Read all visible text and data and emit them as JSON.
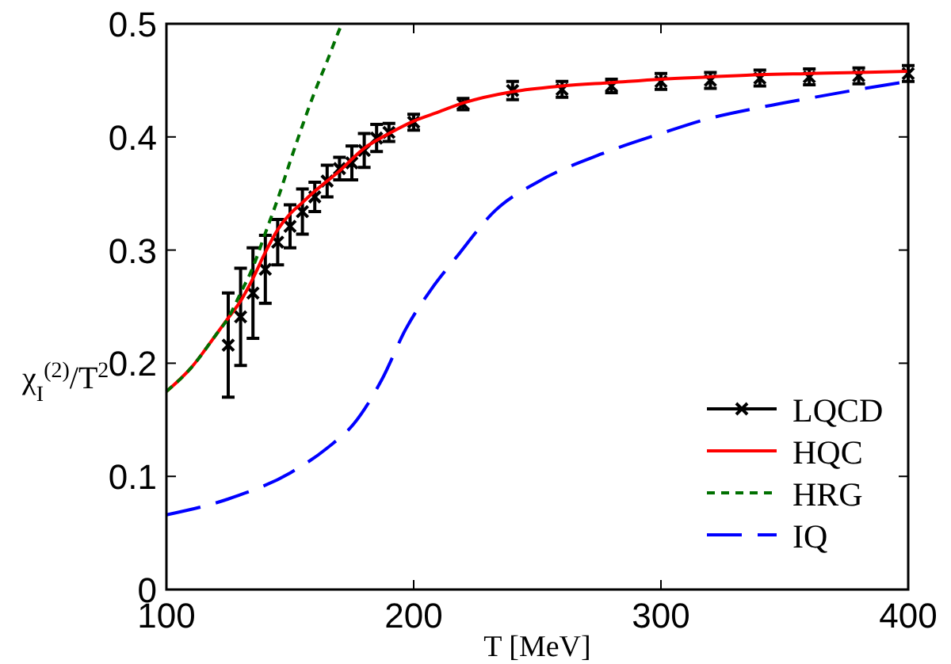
{
  "chart_data": {
    "type": "line",
    "xlabel": "T [MeV]",
    "ylabel": "χ$_{I}$$^{(2)}$/T$^{2}$",
    "xlim": [
      100,
      400
    ],
    "ylim": [
      0,
      0.5
    ],
    "xticks": [
      100,
      200,
      300,
      400
    ],
    "yticks": [
      0,
      0.1,
      0.2,
      0.3,
      0.4,
      0.5
    ],
    "grid": false,
    "legend": "bottom right",
    "series": [
      {
        "name": "LQCD",
        "type": "scatter",
        "color": "#000000",
        "marker": "cross",
        "x": [
          125,
          130,
          135,
          140,
          145,
          150,
          155,
          160,
          165,
          170,
          175,
          180,
          185,
          190,
          200,
          220,
          240,
          260,
          280,
          300,
          320,
          340,
          360,
          380,
          400
        ],
        "values": [
          0.216,
          0.241,
          0.262,
          0.283,
          0.307,
          0.321,
          0.334,
          0.347,
          0.361,
          0.372,
          0.377,
          0.388,
          0.399,
          0.404,
          0.413,
          0.429,
          0.441,
          0.442,
          0.445,
          0.449,
          0.45,
          0.452,
          0.453,
          0.454,
          0.456
        ],
        "errors": [
          0.046,
          0.043,
          0.04,
          0.03,
          0.02,
          0.019,
          0.02,
          0.013,
          0.014,
          0.01,
          0.015,
          0.015,
          0.012,
          0.008,
          0.007,
          0.005,
          0.008,
          0.007,
          0.006,
          0.007,
          0.007,
          0.007,
          0.007,
          0.007,
          0.007
        ]
      },
      {
        "name": "HQC",
        "color": "#ff0000",
        "line_style": "solid",
        "x": [
          100,
          110,
          120,
          125,
          130,
          135,
          140,
          145,
          150,
          155,
          160,
          170,
          180,
          190,
          200,
          210,
          220,
          240,
          260,
          280,
          300,
          320,
          340,
          360,
          380,
          400
        ],
        "values": [
          0.175,
          0.196,
          0.225,
          0.24,
          0.255,
          0.275,
          0.298,
          0.318,
          0.332,
          0.342,
          0.352,
          0.37,
          0.39,
          0.403,
          0.414,
          0.422,
          0.43,
          0.44,
          0.445,
          0.448,
          0.451,
          0.453,
          0.455,
          0.456,
          0.457,
          0.458
        ]
      },
      {
        "name": "HRG",
        "color": "#007000",
        "line_style": "dashed",
        "x": [
          100,
          110,
          120,
          125,
          130,
          135,
          140,
          145,
          150,
          155,
          160,
          165,
          170,
          171
        ],
        "values": [
          0.175,
          0.196,
          0.225,
          0.24,
          0.262,
          0.285,
          0.315,
          0.345,
          0.378,
          0.41,
          0.44,
          0.467,
          0.495,
          0.5
        ]
      },
      {
        "name": "IQ",
        "color": "#0000ff",
        "line_style": "longdash",
        "x": [
          100,
          125,
          150,
          165,
          176,
          187,
          197,
          207,
          217,
          233,
          250,
          276,
          300,
          319,
          340,
          362,
          380,
          400
        ],
        "values": [
          0.066,
          0.08,
          0.103,
          0.125,
          0.147,
          0.185,
          0.231,
          0.265,
          0.293,
          0.335,
          0.36,
          0.385,
          0.403,
          0.416,
          0.426,
          0.435,
          0.442,
          0.449
        ]
      }
    ]
  }
}
